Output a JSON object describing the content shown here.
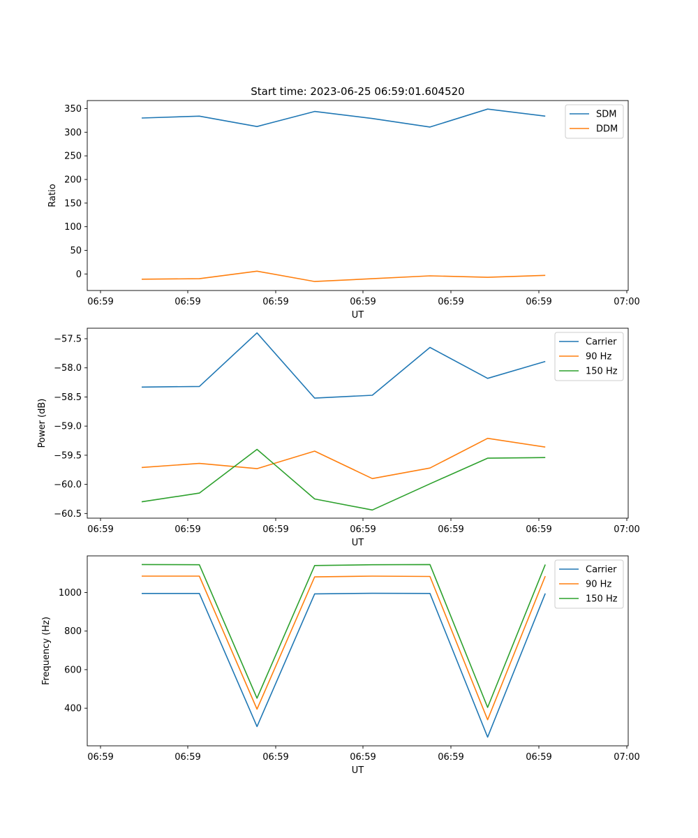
{
  "figure": {
    "title": "Start time: 2023-06-25 06:59:01.604520"
  },
  "chart_data": [
    {
      "type": "line",
      "title": "Start time: 2023-06-25 06:59:01.604520",
      "xlabel": "UT",
      "ylabel": "Ratio",
      "x_tick_labels": [
        "06:59",
        "06:59",
        "06:59",
        "06:59",
        "06:59",
        "06:59",
        "07:00"
      ],
      "y_ticks": [
        0,
        50,
        100,
        150,
        200,
        250,
        300,
        350
      ],
      "ylim": [
        -35,
        367
      ],
      "grid": false,
      "legend_position": "top-right",
      "x": [
        1,
        2,
        3,
        4,
        5,
        6,
        7,
        8
      ],
      "series": [
        {
          "name": "SDM",
          "color": "#1f77b4",
          "values": [
            330,
            334,
            312,
            344,
            329,
            311,
            349,
            334
          ]
        },
        {
          "name": "DDM",
          "color": "#ff7f0e",
          "values": [
            -11,
            -10,
            6,
            -16,
            -10,
            -4,
            -7,
            -3
          ]
        }
      ]
    },
    {
      "type": "line",
      "xlabel": "UT",
      "ylabel": "Power (dB)",
      "x_tick_labels": [
        "06:59",
        "06:59",
        "06:59",
        "06:59",
        "06:59",
        "06:59",
        "07:00"
      ],
      "y_ticks": [
        -60.5,
        -60.0,
        -59.5,
        -59.0,
        -58.5,
        -58.0,
        -57.5
      ],
      "y_tick_labels": [
        "−60.5",
        "−60.0",
        "−59.5",
        "−59.0",
        "−58.5",
        "−58.0",
        "−57.5"
      ],
      "ylim": [
        -60.58,
        -57.32
      ],
      "grid": false,
      "legend_position": "top-right",
      "x": [
        1,
        2,
        3,
        4,
        5,
        6,
        7,
        8
      ],
      "series": [
        {
          "name": "Carrier",
          "color": "#1f77b4",
          "values": [
            -58.33,
            -58.32,
            -57.4,
            -58.52,
            -58.47,
            -57.65,
            -58.18,
            -57.89
          ]
        },
        {
          "name": "90 Hz",
          "color": "#ff7f0e",
          "values": [
            -59.71,
            -59.64,
            -59.73,
            -59.43,
            -59.9,
            -59.72,
            -59.21,
            -59.36
          ]
        },
        {
          "name": "150 Hz",
          "color": "#2ca02c",
          "values": [
            -60.3,
            -60.15,
            -59.4,
            -60.25,
            -60.44,
            -59.99,
            -59.55,
            -59.54
          ]
        }
      ]
    },
    {
      "type": "line",
      "xlabel": "UT",
      "ylabel": "Frequency (Hz)",
      "x_tick_labels": [
        "06:59",
        "06:59",
        "06:59",
        "06:59",
        "06:59",
        "06:59",
        "07:00"
      ],
      "y_ticks": [
        400,
        600,
        800,
        1000
      ],
      "ylim": [
        205,
        1190
      ],
      "grid": false,
      "legend_position": "top-right",
      "x": [
        1,
        2,
        3,
        4,
        5,
        6,
        7,
        8
      ],
      "series": [
        {
          "name": "Carrier",
          "color": "#1f77b4",
          "values": [
            995,
            995,
            305,
            993,
            996,
            995,
            250,
            995
          ]
        },
        {
          "name": "90 Hz",
          "color": "#ff7f0e",
          "values": [
            1085,
            1085,
            395,
            1081,
            1085,
            1083,
            340,
            1085
          ]
        },
        {
          "name": "150 Hz",
          "color": "#2ca02c",
          "values": [
            1145,
            1144,
            452,
            1140,
            1144,
            1145,
            404,
            1145
          ]
        }
      ]
    }
  ]
}
